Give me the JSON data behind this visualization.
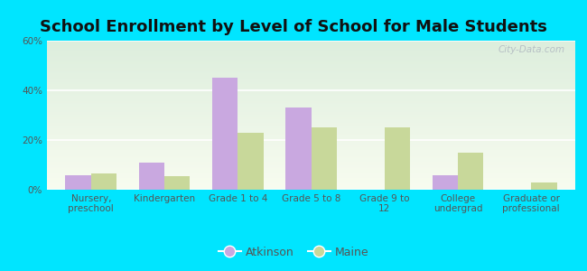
{
  "title": "School Enrollment by Level of School for Male Students",
  "categories": [
    "Nursery,\npreschool",
    "Kindergarten",
    "Grade 1 to 4",
    "Grade 5 to 8",
    "Grade 9 to\n12",
    "College\nundergrad",
    "Graduate or\nprofessional"
  ],
  "atkinson": [
    6,
    11,
    45,
    33,
    0,
    6,
    0
  ],
  "maine": [
    6.5,
    5.5,
    23,
    25,
    25,
    15,
    3
  ],
  "atkinson_color": "#c9a8e0",
  "maine_color": "#c8d89a",
  "background_outer": "#00e5ff",
  "ylim": [
    0,
    60
  ],
  "yticks": [
    0,
    20,
    40,
    60
  ],
  "ytick_labels": [
    "0%",
    "20%",
    "40%",
    "60%"
  ],
  "bar_width": 0.35,
  "title_fontsize": 13,
  "tick_fontsize": 7.5,
  "legend_fontsize": 9,
  "watermark": "City-Data.com"
}
